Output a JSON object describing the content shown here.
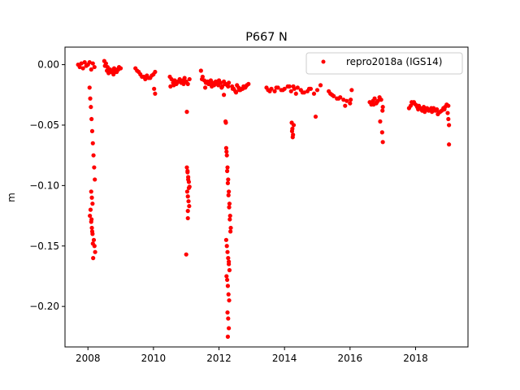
{
  "chart_data": {
    "type": "scatter",
    "title": "P667 N",
    "xlabel": "",
    "ylabel": "m",
    "xlim": [
      2007.3,
      2019.6
    ],
    "ylim": [
      -0.2335,
      0.0145
    ],
    "x_ticks": [
      2008,
      2010,
      2012,
      2014,
      2016,
      2018
    ],
    "x_tick_labels": [
      "2008",
      "2010",
      "2012",
      "2014",
      "2016",
      "2018"
    ],
    "y_ticks": [
      0.0,
      -0.05,
      -0.1,
      -0.15,
      -0.2
    ],
    "y_tick_labels": [
      "0.00",
      "−0.05",
      "−0.10",
      "−0.15",
      "−0.20"
    ],
    "grid": false,
    "legend_position": "top-right",
    "series": [
      {
        "name": "repro2018a (IGS14)",
        "color": "#ff0000",
        "marker": "circle",
        "x": [
          2007.7,
          2007.75,
          2007.8,
          2007.85,
          2007.9,
          2007.95,
          2008.0,
          2008.05,
          2008.1,
          2008.15,
          2008.2,
          2008.05,
          2008.07,
          2008.09,
          2008.11,
          2008.13,
          2008.15,
          2008.17,
          2008.19,
          2008.21,
          2008.1,
          2008.12,
          2008.14,
          2008.08,
          2008.06,
          2008.1,
          2008.12,
          2008.14,
          2008.18,
          2008.2,
          2008.22,
          2008.16,
          2008.11,
          2008.13,
          2008.15,
          2008.5,
          2008.55,
          2008.6,
          2008.65,
          2008.7,
          2008.75,
          2008.8,
          2008.85,
          2008.9,
          2008.95,
          2009.0,
          2008.52,
          2008.58,
          2008.63,
          2008.68,
          2008.72,
          2008.78,
          2008.83,
          2008.88,
          2008.93,
          2008.98,
          2009.45,
          2009.5,
          2009.6,
          2009.7,
          2009.8,
          2009.9,
          2010.0,
          2010.05,
          2009.55,
          2009.65,
          2009.75,
          2009.85,
          2009.95,
          2010.02,
          2010.05,
          2010.5,
          2010.55,
          2010.6,
          2010.65,
          2010.7,
          2010.75,
          2010.8,
          2010.85,
          2010.9,
          2010.95,
          2011.0,
          2011.05,
          2011.1,
          2010.52,
          2010.62,
          2010.72,
          2010.82,
          2010.92,
          2011.02,
          2011.02,
          2011.04,
          2011.06,
          2011.08,
          2011.1,
          2011.03,
          2011.05,
          2011.07,
          2011.09,
          2011.04,
          2011.06,
          2011.08,
          2011.05,
          2011.05,
          2011.0,
          2011.45,
          2011.5,
          2011.55,
          2011.6,
          2011.65,
          2011.7,
          2011.75,
          2011.8,
          2011.85,
          2011.9,
          2011.95,
          2012.0,
          2012.05,
          2012.1,
          2012.15,
          2012.2,
          2012.25,
          2012.3,
          2011.48,
          2011.58,
          2011.68,
          2011.78,
          2011.88,
          2011.98,
          2012.08,
          2012.18,
          2012.28,
          2012.2,
          2012.22,
          2012.24,
          2012.26,
          2012.28,
          2012.3,
          2012.32,
          2012.34,
          2012.36,
          2012.21,
          2012.23,
          2012.25,
          2012.27,
          2012.29,
          2012.31,
          2012.33,
          2012.35,
          2012.22,
          2012.24,
          2012.26,
          2012.28,
          2012.3,
          2012.32,
          2012.23,
          2012.25,
          2012.27,
          2012.29,
          2012.31,
          2012.26,
          2012.28,
          2012.3,
          2012.27,
          2012.3,
          2012.15,
          2012.4,
          2012.45,
          2012.5,
          2012.55,
          2012.6,
          2012.65,
          2012.7,
          2012.75,
          2012.8,
          2012.85,
          2012.9,
          2012.42,
          2012.52,
          2012.62,
          2012.72,
          2012.82,
          2013.45,
          2013.5,
          2013.6,
          2013.7,
          2013.8,
          2013.9,
          2014.0,
          2014.1,
          2014.2,
          2014.3,
          2014.4,
          2014.5,
          2014.6,
          2014.7,
          2014.8,
          2014.9,
          2015.0,
          2015.1,
          2013.55,
          2013.75,
          2013.95,
          2014.15,
          2014.35,
          2014.55,
          2014.75,
          2014.95,
          2014.22,
          2014.24,
          2014.26,
          2014.28,
          2014.23,
          2014.25,
          2014.27,
          2015.35,
          2015.4,
          2015.5,
          2015.6,
          2015.7,
          2015.8,
          2015.9,
          2016.0,
          2016.05,
          2015.45,
          2015.65,
          2015.85,
          2016.02,
          2016.6,
          2016.65,
          2016.7,
          2016.75,
          2016.8,
          2016.85,
          2016.9,
          2016.95,
          2017.0,
          2016.72,
          2016.82,
          2016.92,
          2016.98,
          2017.0,
          2016.99,
          2017.8,
          2017.85,
          2017.9,
          2017.95,
          2018.0,
          2018.05,
          2018.1,
          2018.15,
          2018.2,
          2018.25,
          2018.3,
          2018.35,
          2018.4,
          2018.45,
          2018.5,
          2018.55,
          2018.6,
          2018.65,
          2018.7,
          2018.75,
          2018.8,
          2018.85,
          2018.9,
          2018.95,
          2019.0,
          2017.88,
          2018.08,
          2018.28,
          2018.48,
          2018.68,
          2018.88,
          2018.98,
          2019.0,
          2019.02,
          2019.02
        ],
        "y": [
          0.0,
          -0.002,
          0.001,
          -0.003,
          0.002,
          -0.001,
          0.0,
          0.002,
          -0.004,
          0.001,
          -0.002,
          -0.019,
          -0.028,
          -0.035,
          -0.045,
          -0.055,
          -0.065,
          -0.075,
          -0.085,
          -0.095,
          -0.105,
          -0.11,
          -0.115,
          -0.12,
          -0.125,
          -0.13,
          -0.135,
          -0.14,
          -0.145,
          -0.15,
          -0.155,
          -0.16,
          -0.128,
          -0.138,
          -0.148,
          0.003,
          0.001,
          -0.002,
          -0.004,
          -0.006,
          -0.005,
          -0.003,
          -0.006,
          -0.004,
          -0.002,
          -0.003,
          -0.001,
          -0.005,
          -0.007,
          -0.004,
          -0.006,
          -0.008,
          -0.005,
          -0.006,
          -0.004,
          -0.003,
          -0.003,
          -0.005,
          -0.008,
          -0.01,
          -0.009,
          -0.011,
          -0.008,
          -0.006,
          -0.006,
          -0.01,
          -0.012,
          -0.011,
          -0.009,
          -0.02,
          -0.024,
          -0.01,
          -0.012,
          -0.015,
          -0.013,
          -0.016,
          -0.014,
          -0.012,
          -0.015,
          -0.013,
          -0.011,
          -0.014,
          -0.016,
          -0.012,
          -0.018,
          -0.017,
          -0.015,
          -0.014,
          -0.016,
          -0.039,
          -0.085,
          -0.089,
          -0.093,
          -0.097,
          -0.101,
          -0.105,
          -0.109,
          -0.113,
          -0.117,
          -0.088,
          -0.095,
          -0.102,
          -0.121,
          -0.127,
          -0.157,
          -0.005,
          -0.01,
          -0.013,
          -0.015,
          -0.014,
          -0.016,
          -0.013,
          -0.015,
          -0.017,
          -0.014,
          -0.016,
          -0.013,
          -0.015,
          -0.018,
          -0.014,
          -0.016,
          -0.017,
          -0.015,
          -0.012,
          -0.019,
          -0.016,
          -0.018,
          -0.015,
          -0.017,
          -0.019,
          -0.016,
          -0.018,
          -0.047,
          -0.069,
          -0.075,
          -0.085,
          -0.095,
          -0.105,
          -0.115,
          -0.125,
          -0.135,
          -0.048,
          -0.072,
          -0.088,
          -0.098,
          -0.108,
          -0.118,
          -0.128,
          -0.138,
          -0.145,
          -0.15,
          -0.155,
          -0.16,
          -0.165,
          -0.17,
          -0.175,
          -0.178,
          -0.183,
          -0.19,
          -0.195,
          -0.205,
          -0.21,
          -0.218,
          -0.225,
          -0.163,
          -0.025,
          -0.018,
          -0.02,
          -0.022,
          -0.017,
          -0.019,
          -0.021,
          -0.02,
          -0.018,
          -0.019,
          -0.017,
          -0.016,
          -0.02,
          -0.023,
          -0.021,
          -0.02,
          -0.018,
          -0.019,
          -0.021,
          -0.02,
          -0.022,
          -0.019,
          -0.021,
          -0.02,
          -0.018,
          -0.022,
          -0.02,
          -0.019,
          -0.021,
          -0.023,
          -0.022,
          -0.02,
          -0.024,
          -0.021,
          -0.017,
          -0.022,
          -0.019,
          -0.021,
          -0.018,
          -0.024,
          -0.023,
          -0.02,
          -0.043,
          -0.048,
          -0.053,
          -0.058,
          -0.05,
          -0.055,
          -0.06,
          -0.018,
          -0.022,
          -0.024,
          -0.026,
          -0.028,
          -0.027,
          -0.029,
          -0.03,
          -0.032,
          -0.021,
          -0.025,
          -0.028,
          -0.034,
          -0.029,
          -0.031,
          -0.033,
          -0.03,
          -0.028,
          -0.032,
          -0.03,
          -0.027,
          -0.029,
          -0.035,
          -0.033,
          -0.031,
          -0.047,
          -0.056,
          -0.064,
          -0.038,
          -0.036,
          -0.034,
          -0.032,
          -0.031,
          -0.033,
          -0.035,
          -0.034,
          -0.036,
          -0.038,
          -0.035,
          -0.037,
          -0.036,
          -0.038,
          -0.037,
          -0.039,
          -0.036,
          -0.038,
          -0.037,
          -0.04,
          -0.039,
          -0.038,
          -0.036,
          -0.035,
          -0.033,
          -0.034,
          -0.031,
          -0.037,
          -0.039,
          -0.036,
          -0.041,
          -0.037,
          -0.04,
          -0.045,
          -0.05,
          -0.066
        ]
      }
    ]
  }
}
